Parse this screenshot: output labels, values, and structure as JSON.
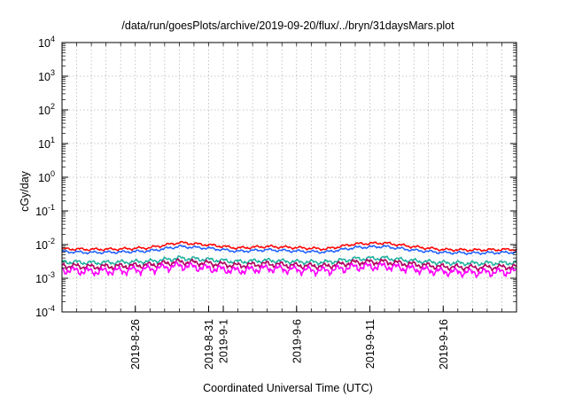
{
  "chart_data": {
    "type": "line",
    "title": "/data/run/goesPlots/archive/2019-09-20/flux/../bryn/31daysMars.plot",
    "xlabel": "Coordinated Universal Time (UTC)",
    "ylabel": "cGy/day",
    "y_scale": "log",
    "ylim": [
      0.0001,
      10000
    ],
    "y_ticks": [
      {
        "base": "10",
        "exp": "-4"
      },
      {
        "base": "10",
        "exp": "-3"
      },
      {
        "base": "10",
        "exp": "-2"
      },
      {
        "base": "10",
        "exp": "-1"
      },
      {
        "base": "10",
        "exp": "0"
      },
      {
        "base": "10",
        "exp": "1"
      },
      {
        "base": "10",
        "exp": "2"
      },
      {
        "base": "10",
        "exp": "3"
      },
      {
        "base": "10",
        "exp": "4"
      }
    ],
    "xlim": [
      "2019-08-21",
      "2019-09-21"
    ],
    "x_ticks": [
      "2019-8-26",
      "2019-8-31",
      "2019-9-1",
      "2019-9-6",
      "2019-9-11",
      "2019-9-16"
    ],
    "grid": true,
    "series": [
      {
        "color": "#ff0000",
        "level": 0.0078,
        "values": [
          {
            "x": "2019-08-21",
            "y": 0.0075
          },
          {
            "x": "2019-08-23",
            "y": 0.0072
          },
          {
            "x": "2019-08-25",
            "y": 0.0074
          },
          {
            "x": "2019-08-27",
            "y": 0.0081
          },
          {
            "x": "2019-08-29",
            "y": 0.0115
          },
          {
            "x": "2019-08-31",
            "y": 0.0098
          },
          {
            "x": "2019-09-02",
            "y": 0.0079
          },
          {
            "x": "2019-09-04",
            "y": 0.0088
          },
          {
            "x": "2019-09-06",
            "y": 0.0081
          },
          {
            "x": "2019-09-08",
            "y": 0.0074
          },
          {
            "x": "2019-09-10",
            "y": 0.0105
          },
          {
            "x": "2019-09-12",
            "y": 0.0112
          },
          {
            "x": "2019-09-14",
            "y": 0.0086
          },
          {
            "x": "2019-09-16",
            "y": 0.0071
          },
          {
            "x": "2019-09-18",
            "y": 0.0069
          },
          {
            "x": "2019-09-21",
            "y": 0.0072
          }
        ]
      },
      {
        "color": "#2060ff",
        "level": 0.0062,
        "values": [
          {
            "x": "2019-08-21",
            "y": 0.0062
          },
          {
            "x": "2019-08-23",
            "y": 0.0058
          },
          {
            "x": "2019-08-25",
            "y": 0.006
          },
          {
            "x": "2019-08-27",
            "y": 0.0065
          },
          {
            "x": "2019-08-29",
            "y": 0.0088
          },
          {
            "x": "2019-08-31",
            "y": 0.0078
          },
          {
            "x": "2019-09-02",
            "y": 0.0063
          },
          {
            "x": "2019-09-04",
            "y": 0.007
          },
          {
            "x": "2019-09-06",
            "y": 0.0064
          },
          {
            "x": "2019-09-08",
            "y": 0.006
          },
          {
            "x": "2019-09-10",
            "y": 0.0082
          },
          {
            "x": "2019-09-12",
            "y": 0.0088
          },
          {
            "x": "2019-09-14",
            "y": 0.0068
          },
          {
            "x": "2019-09-16",
            "y": 0.0058
          },
          {
            "x": "2019-09-18",
            "y": 0.0056
          },
          {
            "x": "2019-09-21",
            "y": 0.0059
          }
        ]
      },
      {
        "color": "#20b0a0",
        "level": 0.0031,
        "values": [
          {
            "x": "2019-08-21",
            "y": 0.0031
          },
          {
            "x": "2019-08-23",
            "y": 0.0029
          },
          {
            "x": "2019-08-25",
            "y": 0.003
          },
          {
            "x": "2019-08-27",
            "y": 0.0032
          },
          {
            "x": "2019-08-29",
            "y": 0.004
          },
          {
            "x": "2019-08-31",
            "y": 0.0036
          },
          {
            "x": "2019-09-02",
            "y": 0.0031
          },
          {
            "x": "2019-09-04",
            "y": 0.0034
          },
          {
            "x": "2019-09-06",
            "y": 0.0031
          },
          {
            "x": "2019-09-08",
            "y": 0.003
          },
          {
            "x": "2019-09-10",
            "y": 0.0038
          },
          {
            "x": "2019-09-12",
            "y": 0.004
          },
          {
            "x": "2019-09-14",
            "y": 0.0033
          },
          {
            "x": "2019-09-16",
            "y": 0.0029
          },
          {
            "x": "2019-09-18",
            "y": 0.0028
          },
          {
            "x": "2019-09-21",
            "y": 0.0029
          }
        ]
      },
      {
        "color": "#b00060",
        "level": 0.0024,
        "values": [
          {
            "x": "2019-08-21",
            "y": 0.0024
          },
          {
            "x": "2019-08-23",
            "y": 0.0022
          },
          {
            "x": "2019-08-25",
            "y": 0.0023
          },
          {
            "x": "2019-08-27",
            "y": 0.0025
          },
          {
            "x": "2019-08-29",
            "y": 0.0031
          },
          {
            "x": "2019-08-31",
            "y": 0.0028
          },
          {
            "x": "2019-09-02",
            "y": 0.0024
          },
          {
            "x": "2019-09-04",
            "y": 0.0027
          },
          {
            "x": "2019-09-06",
            "y": 0.0024
          },
          {
            "x": "2019-09-08",
            "y": 0.0023
          },
          {
            "x": "2019-09-10",
            "y": 0.003
          },
          {
            "x": "2019-09-12",
            "y": 0.0031
          },
          {
            "x": "2019-09-14",
            "y": 0.0026
          },
          {
            "x": "2019-09-16",
            "y": 0.0022
          },
          {
            "x": "2019-09-18",
            "y": 0.0021
          },
          {
            "x": "2019-09-21",
            "y": 0.0022
          }
        ]
      },
      {
        "color": "#ff00ff",
        "level": 0.0018,
        "values": [
          {
            "x": "2019-08-21",
            "y": 0.0018
          },
          {
            "x": "2019-08-23",
            "y": 0.0016
          },
          {
            "x": "2019-08-25",
            "y": 0.0017
          },
          {
            "x": "2019-08-27",
            "y": 0.0019
          },
          {
            "x": "2019-08-29",
            "y": 0.0024
          },
          {
            "x": "2019-08-31",
            "y": 0.002
          },
          {
            "x": "2019-09-02",
            "y": 0.0017
          },
          {
            "x": "2019-09-04",
            "y": 0.002
          },
          {
            "x": "2019-09-06",
            "y": 0.0018
          },
          {
            "x": "2019-09-08",
            "y": 0.0017
          },
          {
            "x": "2019-09-10",
            "y": 0.0022
          },
          {
            "x": "2019-09-12",
            "y": 0.0023
          },
          {
            "x": "2019-09-14",
            "y": 0.0019
          },
          {
            "x": "2019-09-16",
            "y": 0.0016
          },
          {
            "x": "2019-09-18",
            "y": 0.0015
          },
          {
            "x": "2019-09-21",
            "y": 0.0016
          }
        ]
      }
    ]
  }
}
